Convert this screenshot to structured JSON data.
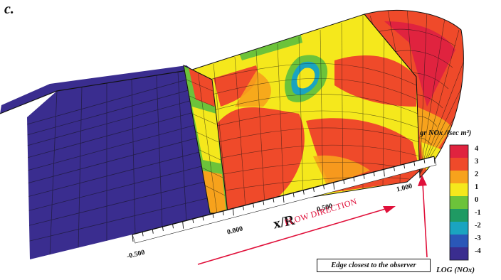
{
  "panel_label": "c.",
  "axis": {
    "label": "x/R",
    "ticks": [
      "-0.500",
      "0.000",
      "0.500",
      "1.000"
    ]
  },
  "flow_label": "FLOW DIRECTION",
  "edge_caption": "Edge closest to the observer",
  "legend": {
    "unit_label": "gr NOx /(sec m³)",
    "footer_label": "LOG (NOx)",
    "levels": [
      "4",
      "3",
      "2",
      "1",
      "0",
      "-1",
      "-2",
      "-3",
      "-4"
    ],
    "colors": [
      "#e0233f",
      "#ef4a2a",
      "#f7a21c",
      "#f5e81c",
      "#6cc33a",
      "#1f9a63",
      "#1aa4c0",
      "#2a57b8",
      "#3a2d8f"
    ]
  },
  "colors": {
    "mesh_low": "#3a2d8f",
    "arrow": "#e0103a"
  }
}
